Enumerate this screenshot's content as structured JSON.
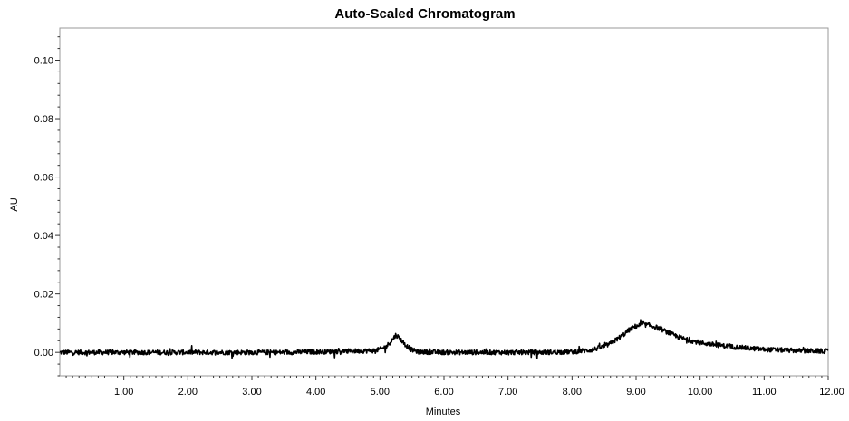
{
  "chart_data": {
    "type": "line",
    "title": "Auto-Scaled Chromatogram",
    "xlabel": "Minutes",
    "ylabel": "AU",
    "xlim": [
      0.0,
      12.0
    ],
    "ylim": [
      -0.008,
      0.111
    ],
    "x_ticks": [
      1,
      2,
      3,
      4,
      5,
      6,
      7,
      8,
      9,
      10,
      11,
      12
    ],
    "x_tick_labels": [
      "1.00",
      "2.00",
      "3.00",
      "4.00",
      "5.00",
      "6.00",
      "7.00",
      "8.00",
      "9.00",
      "10.00",
      "11.00",
      "12.00"
    ],
    "y_ticks": [
      0.0,
      0.02,
      0.04,
      0.06,
      0.08,
      0.1
    ],
    "y_tick_labels": [
      "0.00",
      "0.02",
      "0.04",
      "0.06",
      "0.08",
      "0.10"
    ],
    "grid": false,
    "legend": "none",
    "series": [
      {
        "color": "#000000",
        "x": [
          0.0,
          0.5,
          1.0,
          1.5,
          2.0,
          2.5,
          3.0,
          3.5,
          4.0,
          4.5,
          4.9,
          5.0,
          5.1,
          5.2,
          5.25,
          5.3,
          5.4,
          5.5,
          5.6,
          5.8,
          6.0,
          6.5,
          7.0,
          7.5,
          8.0,
          8.3,
          8.5,
          8.6,
          8.7,
          8.8,
          8.9,
          9.0,
          9.1,
          9.2,
          9.3,
          9.4,
          9.5,
          9.6,
          9.7,
          9.8,
          10.0,
          10.3,
          10.6,
          11.0,
          11.5,
          12.0
        ],
        "y": [
          0.0,
          0.0,
          0.0,
          0.0,
          0.0,
          0.0,
          0.0,
          0.0,
          0.0002,
          0.0004,
          0.0006,
          0.001,
          0.002,
          0.0045,
          0.006,
          0.005,
          0.0025,
          0.0008,
          0.0002,
          0.0001,
          0.0,
          0.0,
          0.0,
          0.0,
          0.0002,
          0.0008,
          0.002,
          0.003,
          0.0045,
          0.006,
          0.0078,
          0.009,
          0.0095,
          0.0093,
          0.0087,
          0.0078,
          0.0068,
          0.0058,
          0.005,
          0.0043,
          0.0033,
          0.0024,
          0.0017,
          0.001,
          0.0006,
          0.0004
        ]
      }
    ]
  }
}
